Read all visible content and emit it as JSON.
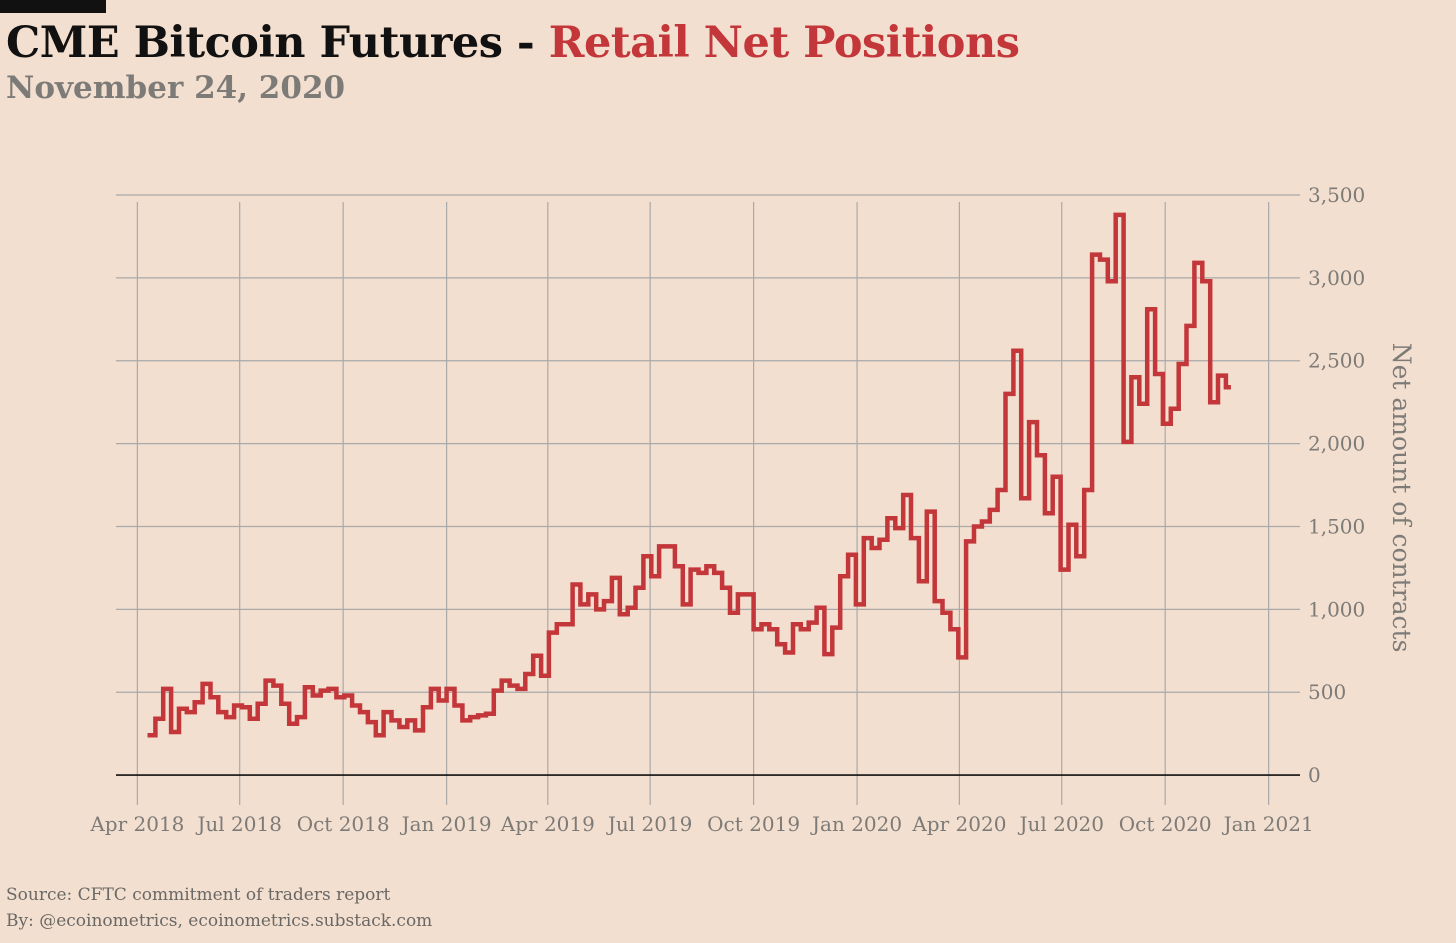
{
  "header": {
    "title_main": "CME Bitcoin Futures - ",
    "title_accent": "Retail Net Positions",
    "subtitle": "November 24, 2020"
  },
  "footer": {
    "source": "Source: CFTC commitment of traders report",
    "byline": "By: @ecoinometrics, ecoinometrics.substack.com"
  },
  "colors": {
    "background": "#f3dfcf",
    "series": "#c3363a",
    "grid": "#a9a9a9",
    "zero_line": "#111111",
    "axis_text": "#7d7b78"
  },
  "chart_data": {
    "type": "line",
    "step": true,
    "title": "CME Bitcoin Futures - Retail Net Positions",
    "subtitle": "November 24, 2020",
    "xlabel": "",
    "ylabel": "Net amount of contracts",
    "y_axis_side": "right",
    "ylim": [
      -120,
      3530
    ],
    "xlim": [
      "2018-03-13",
      "2021-01-20"
    ],
    "grid": true,
    "legend": "none",
    "x_ticks": [
      "2018-04-01",
      "2018-07-01",
      "2018-10-01",
      "2019-01-01",
      "2019-04-01",
      "2019-07-01",
      "2019-10-01",
      "2020-01-01",
      "2020-04-01",
      "2020-07-01",
      "2020-10-01",
      "2021-01-01"
    ],
    "x_tick_labels": [
      "Apr 2018",
      "Jul 2018",
      "Oct 2018",
      "Jan 2019",
      "Apr 2019",
      "Jul 2019",
      "Oct 2019",
      "Jan 2020",
      "Apr 2020",
      "Jul 2020",
      "Oct 2020",
      "Jan 2021"
    ],
    "y_ticks": [
      0,
      500,
      1000,
      1500,
      2000,
      2500,
      3000,
      3500
    ],
    "y_tick_labels": [
      "0",
      "500",
      "1,000",
      "1,500",
      "2,000",
      "2,500",
      "3,000",
      "3,500"
    ],
    "series": [
      {
        "x": [
          "2018-04-10",
          "2018-04-17",
          "2018-04-24",
          "2018-05-01",
          "2018-05-08",
          "2018-05-15",
          "2018-05-22",
          "2018-05-29",
          "2018-06-05",
          "2018-06-12",
          "2018-06-19",
          "2018-06-26",
          "2018-07-03",
          "2018-07-10",
          "2018-07-17",
          "2018-07-24",
          "2018-07-31",
          "2018-08-07",
          "2018-08-14",
          "2018-08-21",
          "2018-08-28",
          "2018-09-04",
          "2018-09-11",
          "2018-09-18",
          "2018-09-25",
          "2018-10-02",
          "2018-10-09",
          "2018-10-16",
          "2018-10-23",
          "2018-10-30",
          "2018-11-06",
          "2018-11-13",
          "2018-11-20",
          "2018-11-27",
          "2018-12-04",
          "2018-12-11",
          "2018-12-18",
          "2018-12-25",
          "2019-01-01",
          "2019-01-08",
          "2019-01-15",
          "2019-01-22",
          "2019-01-29",
          "2019-02-05",
          "2019-02-12",
          "2019-02-19",
          "2019-02-26",
          "2019-03-05",
          "2019-03-12",
          "2019-03-19",
          "2019-03-26",
          "2019-04-02",
          "2019-04-09",
          "2019-04-16",
          "2019-04-23",
          "2019-04-30",
          "2019-05-07",
          "2019-05-14",
          "2019-05-21",
          "2019-05-28",
          "2019-06-04",
          "2019-06-11",
          "2019-06-18",
          "2019-06-25",
          "2019-07-02",
          "2019-07-09",
          "2019-07-16",
          "2019-07-23",
          "2019-07-30",
          "2019-08-06",
          "2019-08-13",
          "2019-08-20",
          "2019-08-27",
          "2019-09-03",
          "2019-09-10",
          "2019-09-17",
          "2019-09-24",
          "2019-10-01",
          "2019-10-08",
          "2019-10-15",
          "2019-10-22",
          "2019-10-29",
          "2019-11-05",
          "2019-11-12",
          "2019-11-19",
          "2019-11-26",
          "2019-12-03",
          "2019-12-10",
          "2019-12-17",
          "2019-12-24",
          "2019-12-31",
          "2020-01-07",
          "2020-01-14",
          "2020-01-21",
          "2020-01-28",
          "2020-02-04",
          "2020-02-11",
          "2020-02-18",
          "2020-02-25",
          "2020-03-03",
          "2020-03-10",
          "2020-03-17",
          "2020-03-24",
          "2020-03-31",
          "2020-04-07",
          "2020-04-14",
          "2020-04-21",
          "2020-04-28",
          "2020-05-05",
          "2020-05-12",
          "2020-05-19",
          "2020-05-26",
          "2020-06-02",
          "2020-06-09",
          "2020-06-16",
          "2020-06-23",
          "2020-06-30",
          "2020-07-07",
          "2020-07-14",
          "2020-07-21",
          "2020-07-28",
          "2020-08-04",
          "2020-08-11",
          "2020-08-18",
          "2020-08-25",
          "2020-09-01",
          "2020-09-08",
          "2020-09-15",
          "2020-09-22",
          "2020-09-29",
          "2020-10-06",
          "2020-10-13",
          "2020-10-20",
          "2020-10-27",
          "2020-11-03",
          "2020-11-10",
          "2020-11-17",
          "2020-11-24"
        ],
        "values": [
          240,
          340,
          520,
          260,
          400,
          380,
          440,
          550,
          470,
          380,
          350,
          420,
          410,
          340,
          430,
          570,
          540,
          430,
          310,
          350,
          530,
          480,
          510,
          520,
          470,
          480,
          420,
          380,
          320,
          240,
          380,
          330,
          290,
          330,
          270,
          410,
          520,
          450,
          520,
          420,
          330,
          350,
          360,
          370,
          510,
          570,
          540,
          520,
          610,
          720,
          600,
          860,
          910,
          910,
          1150,
          1030,
          1090,
          1000,
          1050,
          1190,
          970,
          1010,
          1130,
          1320,
          1200,
          1380,
          1380,
          1260,
          1030,
          1240,
          1220,
          1260,
          1220,
          1130,
          980,
          1090,
          1090,
          880,
          910,
          880,
          790,
          740,
          910,
          880,
          920,
          1010,
          730,
          890,
          1200,
          1330,
          1030,
          1430,
          1370,
          1420,
          1550,
          1490,
          1690,
          1430,
          1170,
          1590,
          1050,
          980,
          880,
          710,
          1410,
          1500,
          1530,
          1600,
          1720,
          2300,
          2560,
          1670,
          2130,
          1930,
          1580,
          1800,
          1240,
          1510,
          1320,
          1720,
          3140,
          3110,
          2980,
          3380,
          2010,
          2400,
          2240,
          2810,
          2420,
          2120,
          2210,
          2480,
          2710,
          3090,
          2980,
          2250,
          2410,
          2340
        ]
      }
    ]
  }
}
